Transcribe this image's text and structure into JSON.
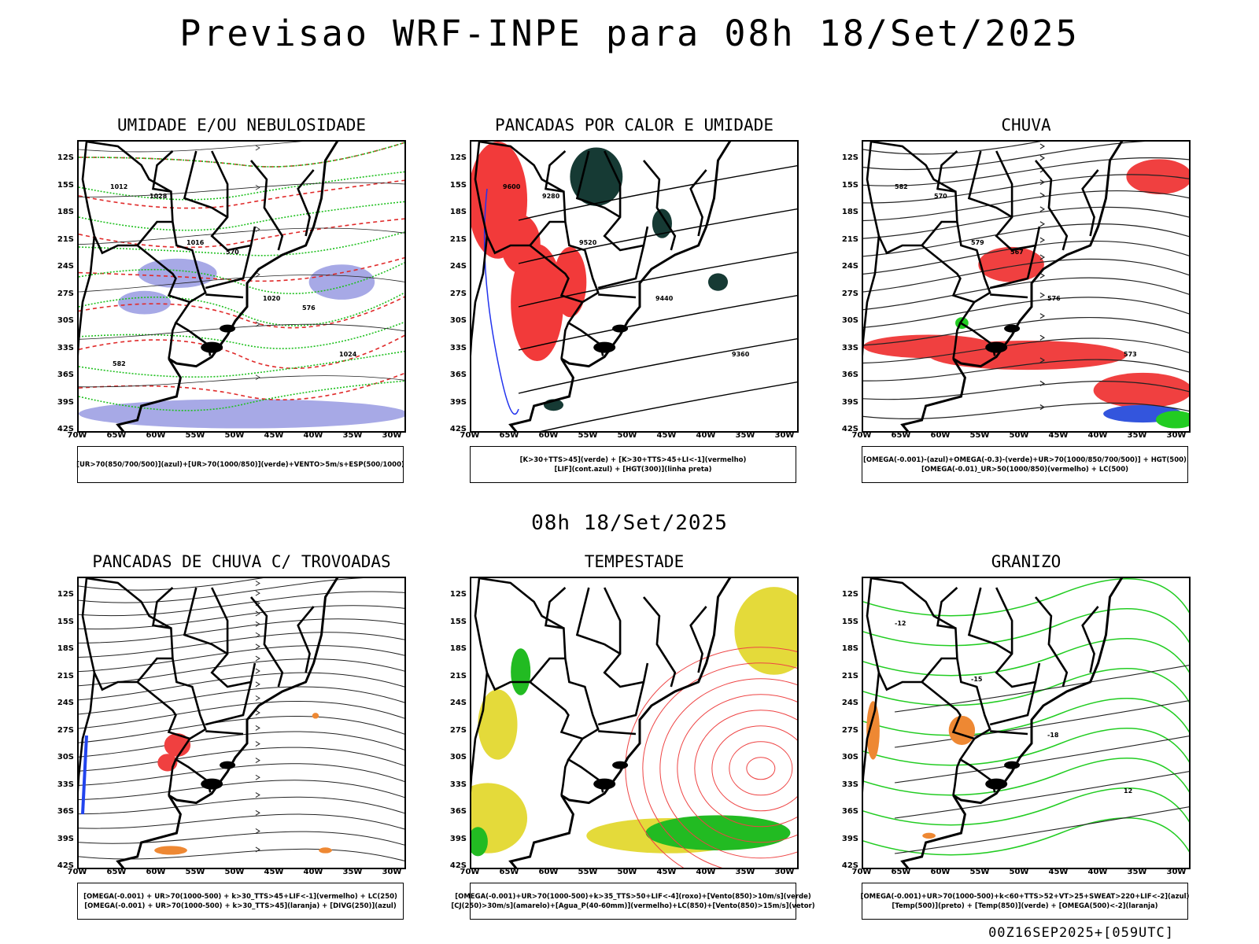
{
  "title": "Previsao WRF-INPE  para 08h 18/Set/2025",
  "mid_time": "08h 18/Set/2025",
  "run_info": "00Z16SEP2025+[059UTC]",
  "lat_labels": [
    "12S",
    "15S",
    "18S",
    "21S",
    "24S",
    "27S",
    "30S",
    "33S",
    "36S",
    "39S",
    "42S"
  ],
  "lon_labels": [
    "70W",
    "65W",
    "60W",
    "55W",
    "50W",
    "45W",
    "40W",
    "35W",
    "30W"
  ],
  "panels": [
    {
      "title": "UMIDADE E/OU NEBULOSIDADE",
      "legend": [
        "[UR>70(850/700/500)](azul)+[UR>70(1000/850)](verde)+VENTO>5m/s+ESP(500/1000)"
      ],
      "contour_labels": [
        "1012",
        "1016",
        "1020",
        "1024",
        "1028",
        "570",
        "576",
        "582"
      ]
    },
    {
      "title": "PANCADAS POR CALOR E UMIDADE",
      "legend": [
        "[K>30+TTS>45](verde) + [K>30+TTS>45+LI<-1](vermelho)",
        "[LIF](cont.azul) + [HGT(300)](linha preta)"
      ],
      "contour_labels": [
        "9600",
        "9520",
        "9440",
        "9360",
        "9280"
      ]
    },
    {
      "title": "CHUVA",
      "legend": [
        "[OMEGA(-0.001)-(azul)+OMEGA(-0.3)-(verde)+UR>70(1000/850/700/500)] + HGT(500)",
        "[OMEGA(-0.01)_UR>50(1000/850)(vermelho) + LC(500)"
      ],
      "contour_labels": [
        "582",
        "579",
        "576",
        "573",
        "570",
        "567"
      ]
    },
    {
      "title": "PANCADAS DE CHUVA C/ TROVOADAS",
      "legend": [
        "[OMEGA(-0.001) + UR>70(1000-500) + k>30_TTS>45+LIF<-1](vermelho) + LC(250)",
        "[OMEGA(-0.001) + UR>70(1000-500) + k>30_TTS>45](laranja) + [DIVG(250)](azul)"
      ],
      "contour_labels": []
    },
    {
      "title": "TEMPESTADE",
      "legend": [
        "[OMEGA(-0.001)+UR>70(1000-500)+k>35_TTS>50+LIF<-4](roxo)+[Vento(850)>10m/s](verde)",
        "[CJ(250)>30m/s](amarelo)+[Agua_P(40-60mm)](vermelho)+LC(850)+[Vento(850)>15m/s](vetor)"
      ],
      "contour_labels": []
    },
    {
      "title": "GRANIZO",
      "legend": [
        "[OMEGA(-0.001)+UR>70(1000-500)+k<60+TTS>52+VT>25+SWEAT>220+LIF<-2](azul)",
        "[Temp(500)](preto) + [Temp(850)](verde) + [OMEGA(500)<-2](laranja)"
      ],
      "contour_labels": [
        "-12",
        "-15",
        "-18",
        "12"
      ]
    }
  ]
}
